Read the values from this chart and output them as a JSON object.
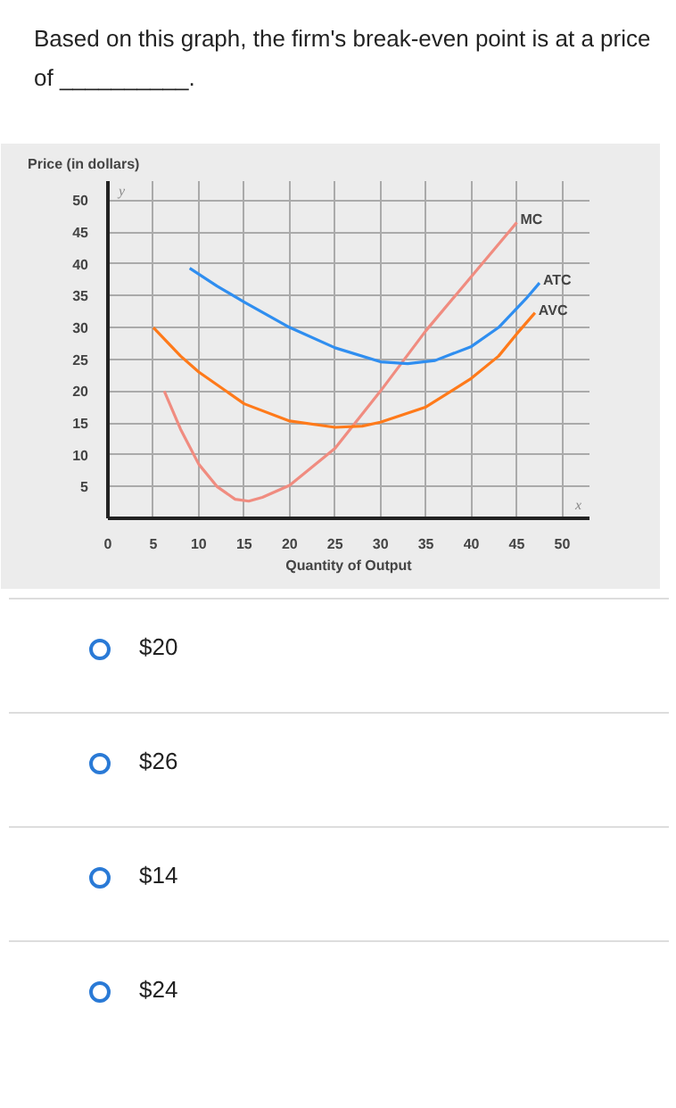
{
  "chart_data": {
    "type": "line",
    "title": "Based on this graph, the firm's break-even point is at a price of __________.",
    "xlabel": "Quantity of Output",
    "ylabel": "Price (in dollars)",
    "xlim": [
      0,
      53
    ],
    "ylim": [
      0,
      53
    ],
    "xticks": [
      0,
      5,
      10,
      15,
      20,
      25,
      30,
      35,
      40,
      45,
      50
    ],
    "yticks": [
      5,
      10,
      15,
      20,
      25,
      30,
      35,
      40,
      45,
      50
    ],
    "grid": true,
    "marker": "none",
    "line_style": "solid",
    "annotations": [
      "$20",
      "$26",
      "$14",
      "$24",
      "y",
      "x"
    ],
    "series": [
      {
        "name": "MC",
        "color": "#f08c80",
        "x": [
          6.2,
          8,
          10,
          12,
          14,
          15.5,
          17,
          20,
          25,
          30,
          35,
          40,
          45
        ],
        "values": [
          20,
          14,
          8.5,
          5,
          3,
          2.7,
          3.3,
          5.2,
          11,
          20,
          29.5,
          38,
          46.5
        ]
      },
      {
        "name": "ATC",
        "color": "#2f8ef0",
        "x": [
          9,
          12,
          15,
          20,
          25,
          30,
          33,
          36,
          40,
          43,
          46,
          47.5
        ],
        "values": [
          39.3,
          36.5,
          34,
          30,
          26.8,
          24.6,
          24.3,
          24.8,
          27,
          30,
          34.5,
          37
        ]
      },
      {
        "name": "AVC",
        "color": "#ff7a1a",
        "x": [
          5,
          8,
          10,
          15,
          20,
          25,
          28,
          30,
          35,
          40,
          43,
          45,
          47
        ],
        "values": [
          30,
          25.5,
          23,
          18,
          15.3,
          14.3,
          14.5,
          15.1,
          17.5,
          22,
          25.5,
          29,
          32.3
        ]
      }
    ]
  }
}
